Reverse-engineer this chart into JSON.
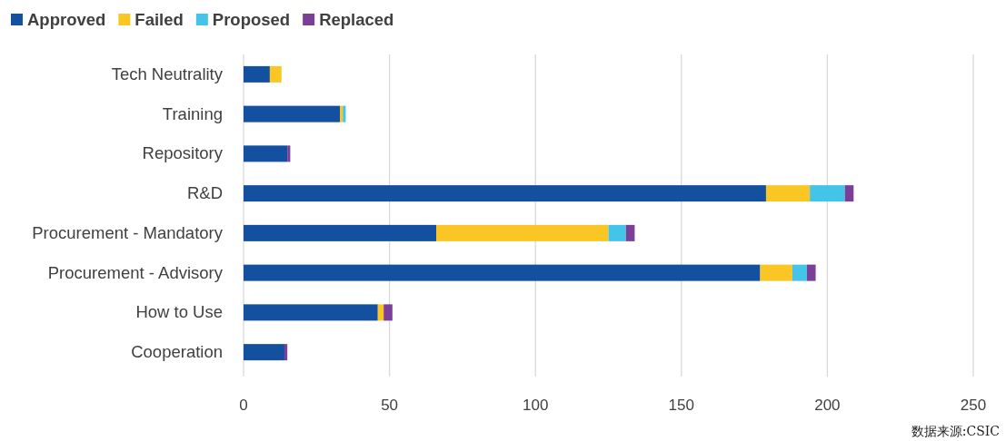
{
  "chart_data": {
    "type": "bar",
    "orientation": "horizontal",
    "stacked": true,
    "categories": [
      "Tech Neutrality",
      "Training",
      "Repository",
      "R&D",
      "Procurement - Mandatory",
      "Procurement - Advisory",
      "How to Use",
      "Cooperation"
    ],
    "series": [
      {
        "name": "Approved",
        "color": "#1450a0",
        "values": [
          9,
          33,
          15,
          179,
          66,
          177,
          46,
          14
        ]
      },
      {
        "name": "Failed",
        "color": "#f9c623",
        "values": [
          4,
          1,
          0,
          15,
          59,
          11,
          2,
          0
        ]
      },
      {
        "name": "Proposed",
        "color": "#45c4ea",
        "values": [
          0,
          1,
          0,
          12,
          6,
          5,
          0,
          0
        ]
      },
      {
        "name": "Replaced",
        "color": "#7b3f98",
        "values": [
          0,
          0,
          1,
          3,
          3,
          3,
          3,
          1
        ]
      }
    ],
    "xlim": [
      0,
      250
    ],
    "xticks": [
      0,
      50,
      100,
      150,
      200,
      250
    ],
    "grid": "x",
    "legend": "top left",
    "annotations": [
      "数据来源:CSIC"
    ]
  }
}
